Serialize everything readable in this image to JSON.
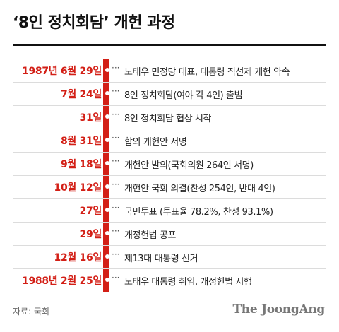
{
  "title": "‘8인 정치회담’ 개헌 과정",
  "accent_color": "#d31f16",
  "events": [
    {
      "date": "1987년 6월 29일",
      "text": "노태우 민정당 대표, 대통령 직선제 개헌 약속"
    },
    {
      "date": "7월 24일",
      "text": "8인 정치회담(여야 각 4인) 출범"
    },
    {
      "date": "31일",
      "text": "8인 정치회담 협상 시작"
    },
    {
      "date": "8월 31일",
      "text": "합의 개헌안 서명"
    },
    {
      "date": "9월 18일",
      "text": "개헌안 발의(국회의원 264인 서명)"
    },
    {
      "date": "10월 12일",
      "text": "개헌안 국회 의결(찬성 254인, 반대 4인)"
    },
    {
      "date": "27일",
      "text": "국민투표 (투표율 78.2%, 찬성 93.1%)"
    },
    {
      "date": "29일",
      "text": "개정헌법 공포"
    },
    {
      "date": "12월 16일",
      "text": "제13대 대통령 선거"
    },
    {
      "date": "1988년 2월 25일",
      "text": "노태우 대통령 취임, 개정헌법 시행"
    }
  ],
  "source": "자료: 국회",
  "logo": "The JoongAng"
}
